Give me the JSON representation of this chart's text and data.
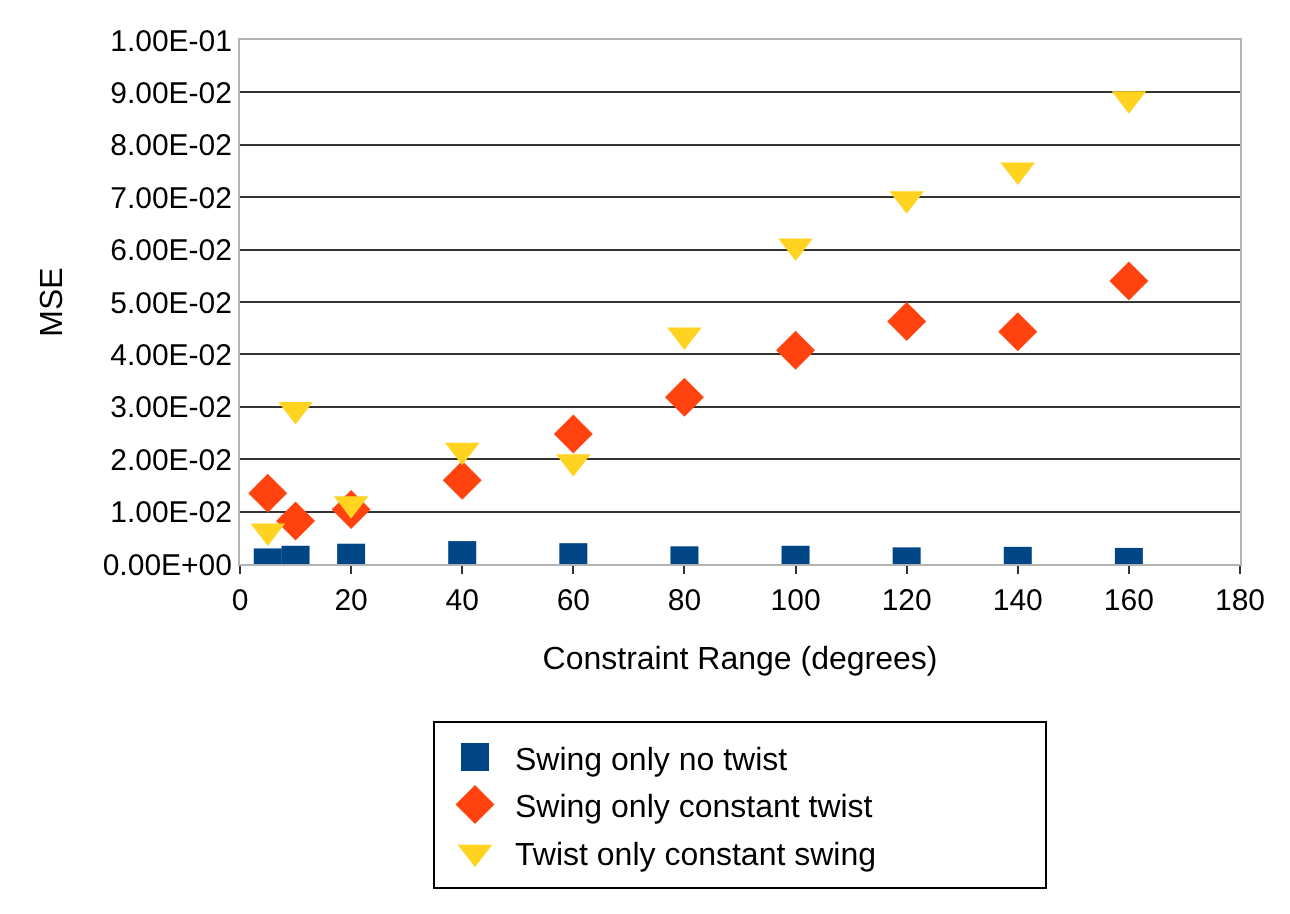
{
  "chart_data": {
    "type": "scatter",
    "xlabel": "Constraint Range (degrees)",
    "ylabel": "MSE",
    "x": [
      5,
      10,
      20,
      40,
      60,
      80,
      100,
      120,
      140,
      160
    ],
    "series": [
      {
        "name": "Swing only no twist",
        "color": "#004586",
        "marker": "square",
        "values": [
          0.0003,
          0.0008,
          0.0012,
          0.0017,
          0.0013,
          0.0007,
          0.0008,
          0.0005,
          0.0006,
          0.0004
        ]
      },
      {
        "name": "Swing only constant twist",
        "color": "#ff420e",
        "marker": "diamond",
        "values": [
          0.0135,
          0.0082,
          0.0104,
          0.016,
          0.0248,
          0.0318,
          0.0408,
          0.0463,
          0.0443,
          0.054
        ]
      },
      {
        "name": "Twist only constant swing",
        "color": "#ffd320",
        "marker": "triangle",
        "values": [
          0.0063,
          0.0295,
          0.0115,
          0.0217,
          0.0195,
          0.0437,
          0.0607,
          0.0697,
          0.0752,
          0.0888
        ]
      }
    ],
    "xlim": [
      0,
      180
    ],
    "xticks": [
      0,
      20,
      40,
      60,
      80,
      100,
      120,
      140,
      160,
      180
    ],
    "ylim": [
      0,
      0.1
    ],
    "yticks": [
      {
        "value": 0,
        "label": "0.00E+00"
      },
      {
        "value": 0.01,
        "label": "1.00E-02"
      },
      {
        "value": 0.02,
        "label": "2.00E-02"
      },
      {
        "value": 0.03,
        "label": "3.00E-02"
      },
      {
        "value": 0.04,
        "label": "4.00E-02"
      },
      {
        "value": 0.05,
        "label": "5.00E-02"
      },
      {
        "value": 0.06,
        "label": "6.00E-02"
      },
      {
        "value": 0.07,
        "label": "7.00E-02"
      },
      {
        "value": 0.08,
        "label": "8.00E-02"
      },
      {
        "value": 0.09,
        "label": "9.00E-02"
      },
      {
        "value": 0.1,
        "label": "1.00E-01"
      }
    ],
    "grid": "y",
    "legend": "bottom"
  }
}
